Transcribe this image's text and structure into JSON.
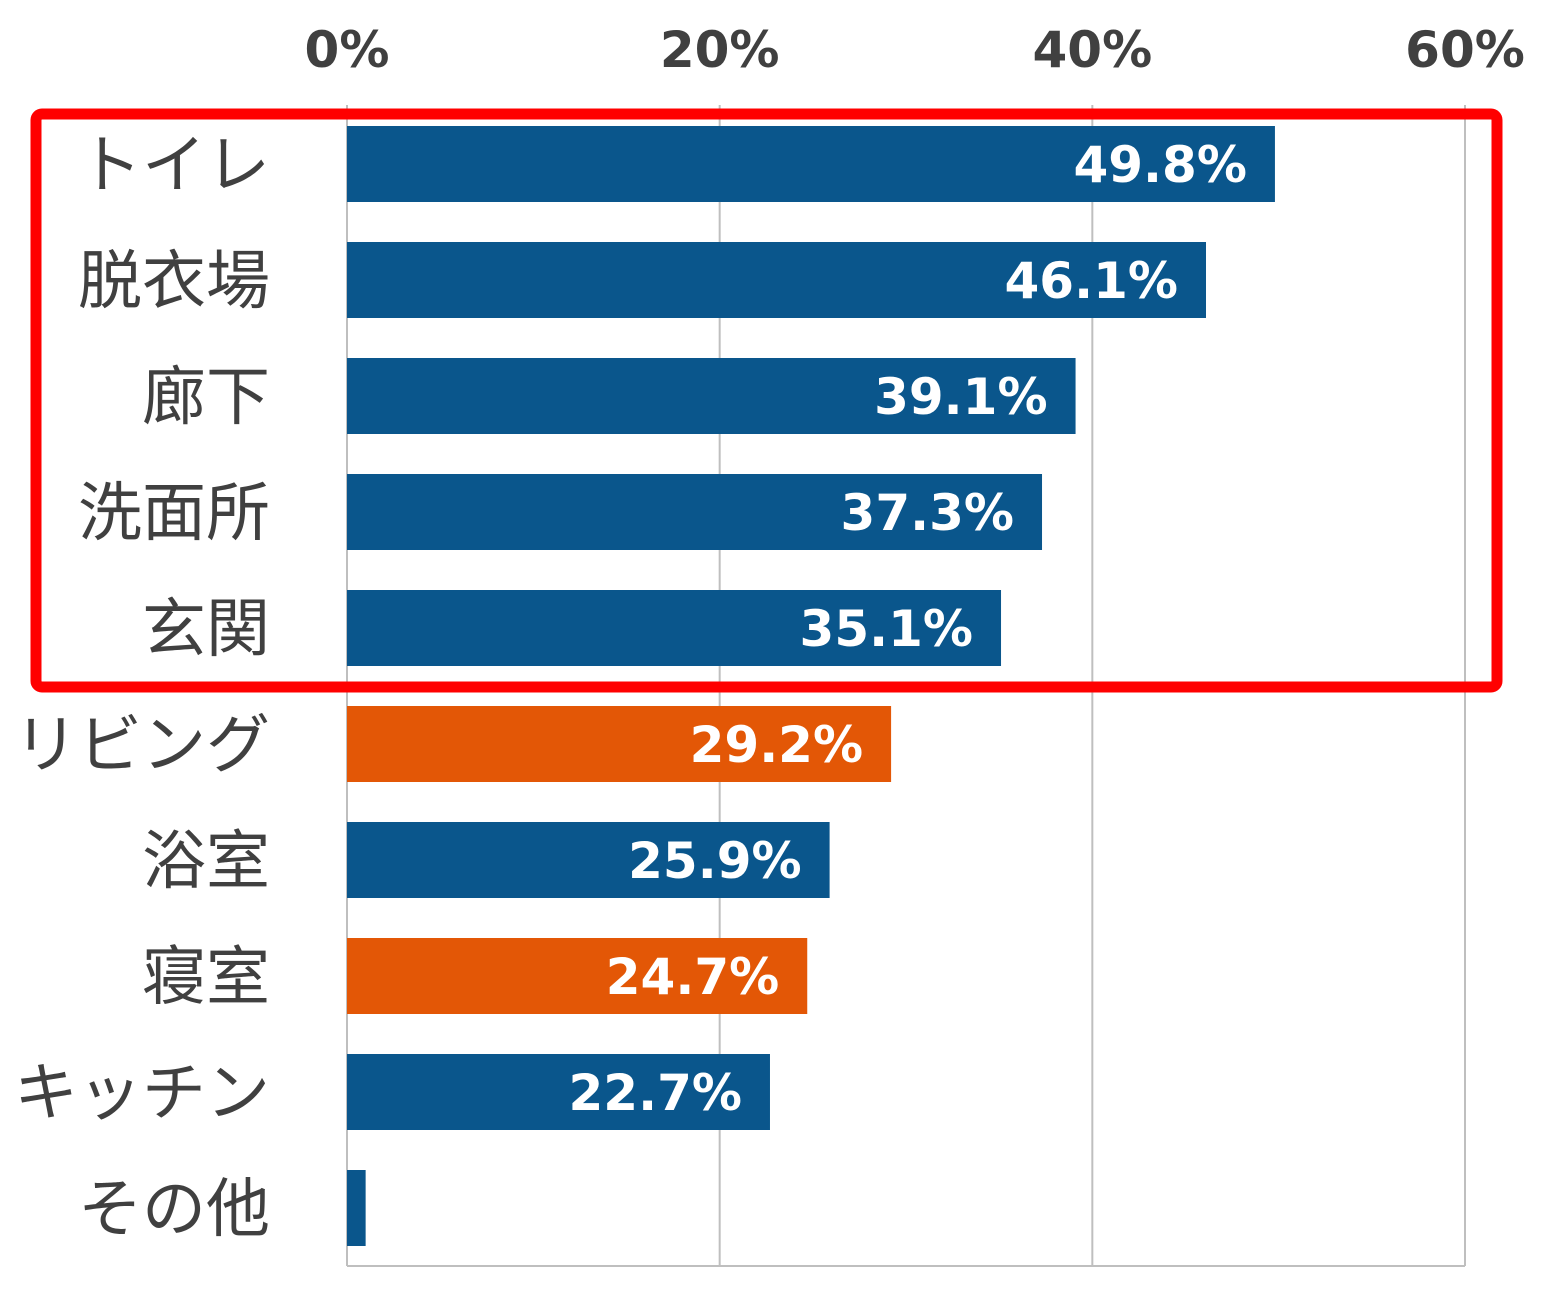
{
  "chart_data": {
    "type": "bar",
    "orientation": "horizontal",
    "categories": [
      "トイレ",
      "脱衣場",
      "廊下",
      "洗面所",
      "玄関",
      "リビング",
      "浴室",
      "寝室",
      "キッチン",
      "その他"
    ],
    "values": [
      49.8,
      46.1,
      39.1,
      37.3,
      35.1,
      29.2,
      25.9,
      24.7,
      22.7,
      1.0
    ],
    "data_labels": [
      "49.8%",
      "46.1%",
      "39.1%",
      "37.3%",
      "35.1%",
      "29.2%",
      "25.9%",
      "24.7%",
      "22.7%",
      ""
    ],
    "bar_colors": [
      "#0a568c",
      "#0a568c",
      "#0a568c",
      "#0a568c",
      "#0a568c",
      "#e35706",
      "#0a568c",
      "#e35706",
      "#0a568c",
      "#0a568c"
    ],
    "xlim": [
      0,
      60
    ],
    "x_ticks": [
      0,
      20,
      40,
      60
    ],
    "x_tick_labels": [
      "0%",
      "20%",
      "40%",
      "60%"
    ],
    "x_axis_position": "top",
    "grid": true,
    "grid_color": "#bfbfbf",
    "highlight": {
      "categories": [
        "トイレ",
        "脱衣場",
        "廊下",
        "洗面所",
        "玄関"
      ],
      "color": "#ff0000"
    },
    "title": "",
    "xlabel": "",
    "ylabel": ""
  }
}
